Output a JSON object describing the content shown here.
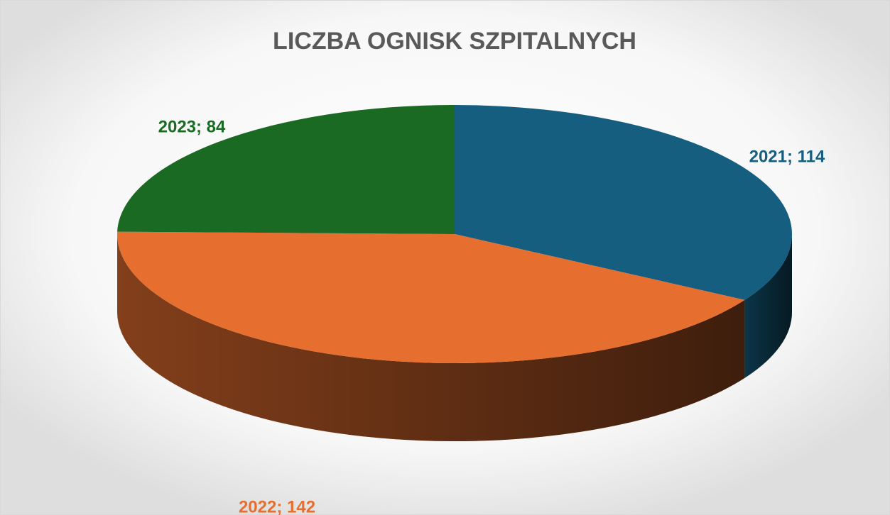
{
  "chart_data": {
    "type": "pie3d",
    "title": "LICZBA OGNISK SZPITALNYCH",
    "categories": [
      "2021",
      "2022",
      "2023"
    ],
    "values": [
      114,
      142,
      84
    ],
    "value_labels": [
      "2021; 114",
      "2022; 142",
      "2023; 84"
    ],
    "colors": [
      "#155e80",
      "#e66f2f",
      "#1b6a23"
    ]
  }
}
